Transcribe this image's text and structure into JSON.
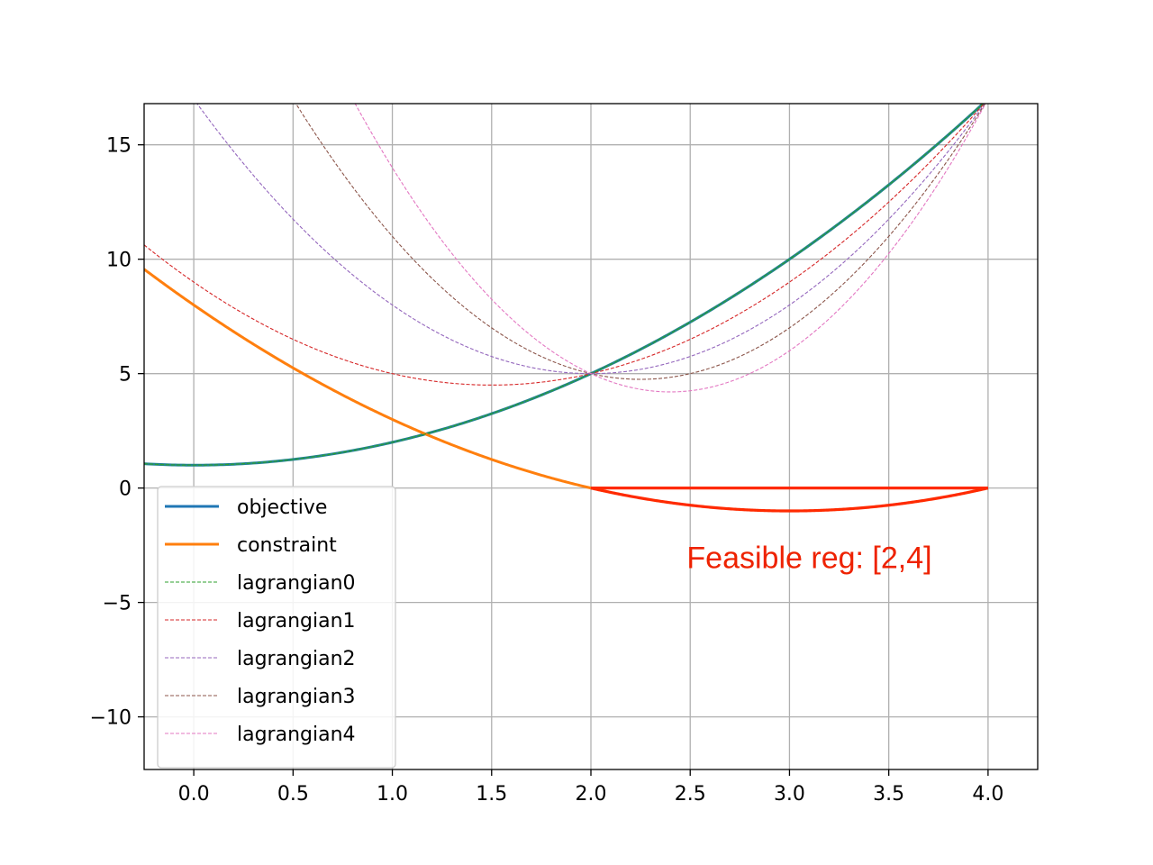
{
  "chart_data": {
    "type": "line",
    "title": "",
    "xlabel": "",
    "ylabel": "",
    "xlim": [
      -0.25,
      4.25
    ],
    "ylim": [
      -12.3,
      16.8
    ],
    "grid": true,
    "legend_position": "lower-left",
    "x_ticks": [
      {
        "value": 0.0,
        "label": "0.0"
      },
      {
        "value": 0.5,
        "label": "0.5"
      },
      {
        "value": 1.0,
        "label": "1.0"
      },
      {
        "value": 1.5,
        "label": "1.5"
      },
      {
        "value": 2.0,
        "label": "2.0"
      },
      {
        "value": 2.5,
        "label": "2.5"
      },
      {
        "value": 3.0,
        "label": "3.0"
      },
      {
        "value": 3.5,
        "label": "3.5"
      },
      {
        "value": 4.0,
        "label": "4.0"
      }
    ],
    "y_ticks": [
      {
        "value": -10,
        "label": "−10"
      },
      {
        "value": -5,
        "label": "−5"
      },
      {
        "value": 0,
        "label": "0"
      },
      {
        "value": 5,
        "label": "5"
      },
      {
        "value": 10,
        "label": "10"
      },
      {
        "value": 15,
        "label": "15"
      }
    ],
    "series": [
      {
        "name": "objective",
        "color": "#1f77b4",
        "style": "solid",
        "formula": "x^2+1",
        "x_range": [
          -0.25,
          4.0
        ]
      },
      {
        "name": "constraint",
        "color": "#ff7f0e",
        "style": "solid",
        "formula": "(x-2)(x-4)",
        "x_range": [
          -0.25,
          2.0
        ]
      },
      {
        "name": "lagrangian0",
        "color": "#2ca02c",
        "style": "dashed",
        "multiplier": 0,
        "formula": "x^2+1+0*(x-2)(x-4)",
        "x_range": [
          -0.25,
          4.0
        ]
      },
      {
        "name": "lagrangian1",
        "color": "#d62728",
        "style": "dashed",
        "multiplier": 1,
        "formula": "x^2+1+1*(x-2)(x-4)",
        "x_range": [
          -0.25,
          4.0
        ]
      },
      {
        "name": "lagrangian2",
        "color": "#9467bd",
        "style": "dashed",
        "multiplier": 2,
        "formula": "x^2+1+2*(x-2)(x-4)",
        "x_range": [
          -0.25,
          4.0
        ]
      },
      {
        "name": "lagrangian3",
        "color": "#8c564b",
        "style": "dashed",
        "multiplier": 3,
        "formula": "x^2+1+3*(x-2)(x-4)",
        "x_range": [
          -0.25,
          4.0
        ]
      },
      {
        "name": "lagrangian4",
        "color": "#e377c2",
        "style": "dashed",
        "multiplier": 4,
        "formula": "x^2+1+4*(x-2)(x-4)",
        "x_range": [
          -0.25,
          4.0
        ]
      }
    ],
    "feasible_region": {
      "color": "#ff2a00",
      "x_range": [
        2.0,
        4.0
      ],
      "lower_formula": "(x-2)(x-4)",
      "upper_value": 0
    },
    "annotations": [
      {
        "text": "Feasible reg: [2,4]",
        "x": 3.1,
        "y": -3.5,
        "color": "#ee2200"
      }
    ]
  }
}
